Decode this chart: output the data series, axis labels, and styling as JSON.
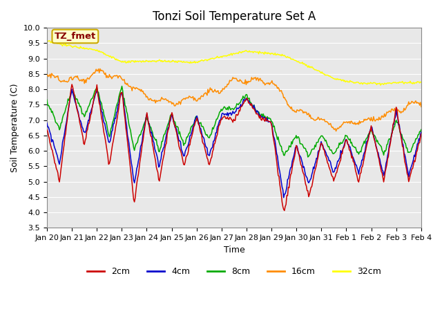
{
  "title": "Tonzi Soil Temperature Set A",
  "xlabel": "Time",
  "ylabel": "Soil Temperature (C)",
  "ylim": [
    3.5,
    10.0
  ],
  "yticks": [
    3.5,
    4.0,
    4.5,
    5.0,
    5.5,
    6.0,
    6.5,
    7.0,
    7.5,
    8.0,
    8.5,
    9.0,
    9.5,
    10.0
  ],
  "xtick_labels": [
    "Jan 20",
    "Jan 21",
    "Jan 22",
    "Jan 23",
    "Jan 24",
    "Jan 25",
    "Jan 26",
    "Jan 27",
    "Jan 28",
    "Jan 29",
    "Jan 30",
    "Jan 31",
    "Feb 1",
    "Feb 2",
    "Feb 3",
    "Feb 4"
  ],
  "colors": {
    "2cm": "#CC0000",
    "4cm": "#0000CC",
    "8cm": "#00AA00",
    "16cm": "#FF8C00",
    "32cm": "#FFFF00"
  },
  "annotation_text": "TZ_fmet",
  "annotation_bg": "#FFFFCC",
  "annotation_border": "#CCAA00",
  "annotation_fg": "#880000",
  "plot_bg": "#E8E8E8",
  "n_points": 480
}
